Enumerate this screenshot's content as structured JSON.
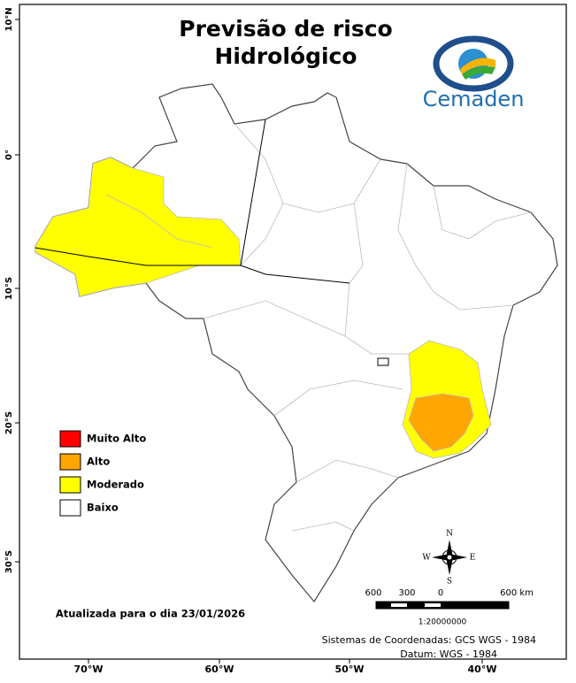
{
  "title": [
    "Previsão de risco",
    "Hidrológico"
  ],
  "logo": "Cemaden",
  "legend": [
    {
      "label": "Muito Alto",
      "color": "#ff0000"
    },
    {
      "label": "Alto",
      "color": "#ffa500"
    },
    {
      "label": "Moderado",
      "color": "#ffff00"
    },
    {
      "label": "Baixo",
      "color": "#ffffff"
    }
  ],
  "longitude_labels": [
    "70°W",
    "60°W",
    "50°W",
    "40°W"
  ],
  "latitude_labels": [
    "10°N",
    "0°",
    "10°S",
    "20°S",
    "30°S"
  ],
  "updated": "Atualizada para o dia 23/01/2026",
  "compass": {
    "north": "N",
    "east": "E",
    "south": "S",
    "west": "W"
  },
  "scale": {
    "labels": [
      "600",
      "300",
      "0",
      "600 km"
    ],
    "ratio": "1:20000000"
  },
  "credits": [
    "Sistemas de Coordenadas: GCS WGS - 1984",
    "Datum: WGS - 1984"
  ]
}
